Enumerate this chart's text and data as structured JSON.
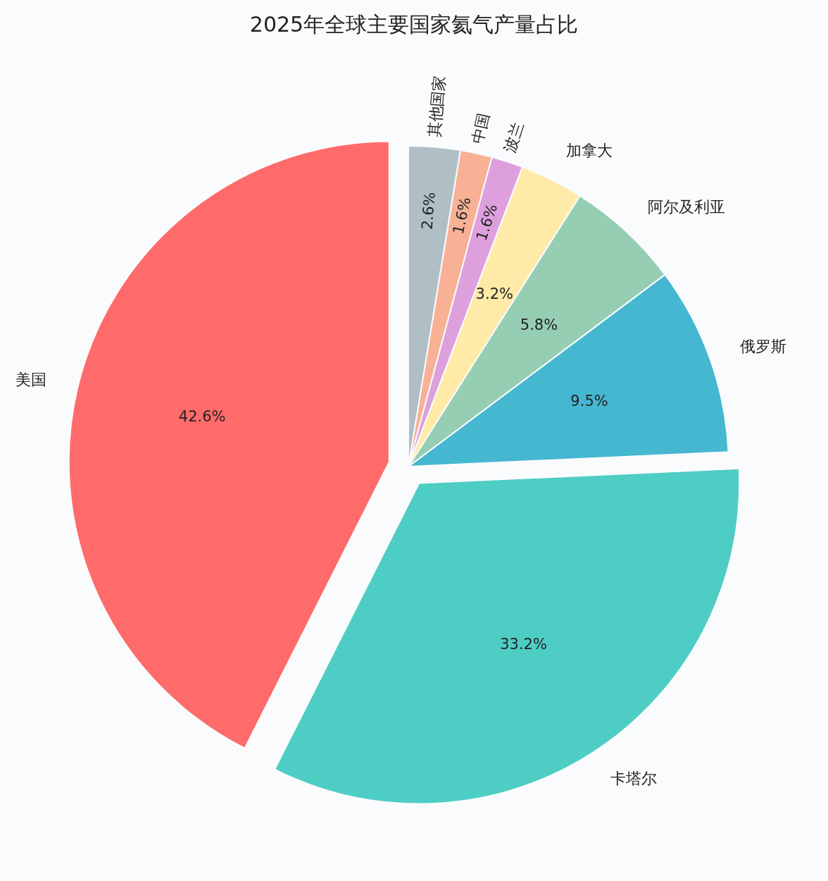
{
  "chart_data": {
    "type": "pie",
    "title": "2025年全球主要国家氦气产量占比",
    "categories": [
      "美国",
      "卡塔尔",
      "俄罗斯",
      "阿尔及利亚",
      "加拿大",
      "波兰",
      "中国",
      "其他国家"
    ],
    "values": [
      42.6,
      33.2,
      9.5,
      5.8,
      3.2,
      1.6,
      1.6,
      2.6
    ],
    "colors": [
      "#ff6b6b",
      "#4ecdc4",
      "#45b7d1",
      "#96ceb4",
      "#ffeaa7",
      "#dda0dd",
      "#f8b195",
      "#b0bec5"
    ],
    "value_labels": [
      "42.6%",
      "33.2%",
      "9.5%",
      "5.8%",
      "3.2%",
      "1.6%",
      "1.6%",
      "2.6%"
    ]
  }
}
